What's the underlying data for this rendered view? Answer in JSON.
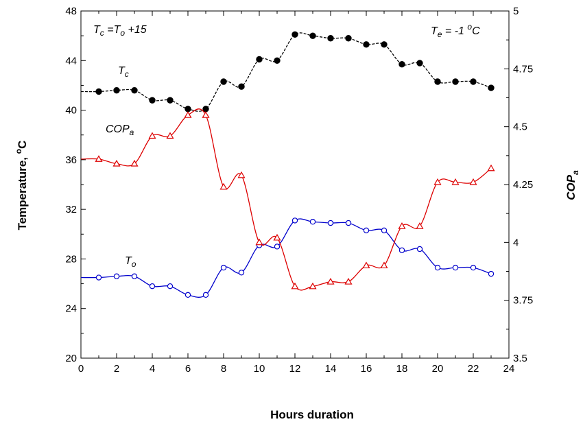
{
  "chart_data": {
    "type": "line",
    "xlabel": "Hours duration",
    "ylabel_left_main": "Temperature, ",
    "ylabel_left_sup": "o",
    "ylabel_left_tail": "C",
    "ylabel_right_main": "COP",
    "ylabel_right_sub": "a",
    "xlim": [
      0,
      24
    ],
    "ylim_left": [
      20,
      48
    ],
    "ylim_right": [
      3.5,
      5.0
    ],
    "x_ticks": [
      0,
      2,
      4,
      6,
      8,
      10,
      12,
      14,
      16,
      18,
      20,
      22,
      24
    ],
    "y_ticks_left": [
      20,
      24,
      28,
      32,
      36,
      40,
      44,
      48
    ],
    "y_ticks_right": [
      "3.5",
      "3.75",
      "4",
      "4.25",
      "4.5",
      "4.75",
      "5"
    ],
    "y_ticks_right_values": [
      3.5,
      3.75,
      4.0,
      4.25,
      4.5,
      4.75,
      5.0
    ],
    "x": [
      1,
      2,
      3,
      4,
      5,
      6,
      7,
      8,
      9,
      10,
      11,
      12,
      13,
      14,
      15,
      16,
      17,
      18,
      19,
      20,
      21,
      22,
      23
    ],
    "series": [
      {
        "key": "Tc",
        "axis": "left",
        "color": "#000000",
        "marker": "filled-circle",
        "dashed": true,
        "values": [
          41.5,
          41.6,
          41.6,
          40.8,
          40.8,
          40.1,
          40.1,
          42.3,
          41.9,
          44.1,
          44.0,
          46.1,
          46.0,
          45.8,
          45.8,
          45.3,
          45.3,
          43.7,
          43.8,
          42.3,
          42.3,
          42.3,
          41.8
        ]
      },
      {
        "key": "To",
        "axis": "left",
        "color": "#0000cc",
        "marker": "open-circle",
        "dashed": false,
        "values": [
          26.5,
          26.6,
          26.6,
          25.8,
          25.8,
          25.1,
          25.1,
          27.3,
          26.9,
          29.1,
          29.0,
          31.1,
          31.0,
          30.9,
          30.9,
          30.3,
          30.3,
          28.7,
          28.8,
          27.3,
          27.3,
          27.3,
          26.8
        ]
      },
      {
        "key": "COPa",
        "axis": "right",
        "color": "#dd0000",
        "marker": "open-triangle",
        "dashed": false,
        "values": [
          4.36,
          4.34,
          4.34,
          4.46,
          4.46,
          4.55,
          4.55,
          4.24,
          4.29,
          4.0,
          4.02,
          3.81,
          3.81,
          3.83,
          3.83,
          3.9,
          3.9,
          4.07,
          4.07,
          4.26,
          4.26,
          4.26,
          4.32
        ]
      }
    ],
    "annotations": {
      "tc_label": {
        "main": "T",
        "sub": "c"
      },
      "to_label": {
        "main": "T",
        "sub": "o"
      },
      "cop_label": {
        "main": "COP",
        "sub": "a"
      },
      "formula": {
        "t1": "T",
        "s1": "c",
        "mid": " =T",
        "s2": "o",
        "tail": " +15"
      },
      "te": {
        "t1": "T",
        "s1": "e",
        "mid": " = -1 ",
        "sup": "o",
        "tail": "C"
      }
    }
  }
}
